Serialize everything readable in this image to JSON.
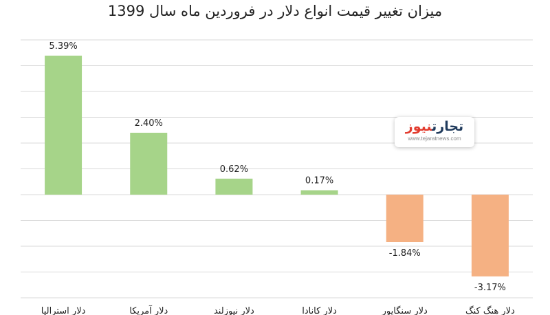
{
  "title": "میزان تغییر قیمت انواع دلار در فروردین ماه سال 1399",
  "logo": {
    "part1": "تجارت",
    "part2": "نیوز",
    "url": "www.tejaratnews.com"
  },
  "colors": {
    "positive": "#a6d489",
    "negative": "#f5b183",
    "grid": "#d9d9d9",
    "label": "#222222"
  },
  "chart_data": {
    "type": "bar",
    "title": "میزان تغییر قیمت انواع دلار در فروردین ماه سال 1399",
    "categories": [
      "دلار استرالیا",
      "دلار آمریکا",
      "دلار نیوزلند",
      "دلار کانادا",
      "دلار سنگاپور",
      "دلار هنگ کنگ"
    ],
    "values": [
      5.39,
      2.4,
      0.62,
      0.17,
      -1.84,
      -3.17
    ],
    "value_labels": [
      "5.39%",
      "2.40%",
      "0.62%",
      "0.17%",
      "-1.84%",
      "-3.17%"
    ],
    "ylim": [
      -4,
      6
    ],
    "grid": true,
    "legend": "none"
  }
}
